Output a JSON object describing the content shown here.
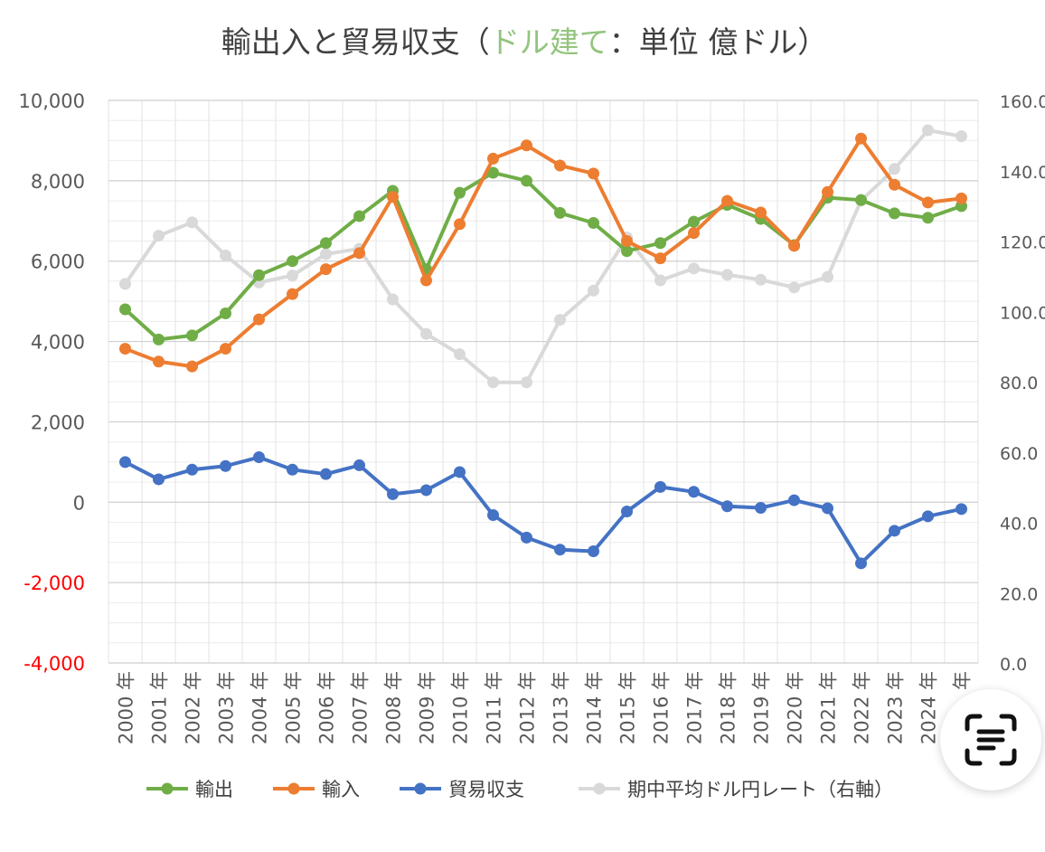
{
  "chart_data": {
    "type": "line",
    "title": {
      "prefix": "輸出入と貿易収支（",
      "highlight": "ドル建て",
      "suffix": "：単位 億ドル）",
      "highlight_color": "#93c47d"
    },
    "categories": [
      "2000 年",
      "2001 年",
      "2002 年",
      "2003 年",
      "2004 年",
      "2005 年",
      "2006 年",
      "2007 年",
      "2008 年",
      "2009 年",
      "2010 年",
      "2011 年",
      "2012 年",
      "2013 年",
      "2014 年",
      "2015 年",
      "2016 年",
      "2017 年",
      "2018 年",
      "2019 年",
      "2020 年",
      "2021 年",
      "2022 年",
      "2023 年",
      "2024 年",
      "年"
    ],
    "y_left": {
      "min": -4000,
      "max": 10000,
      "step": 2000,
      "tick_labels": [
        "-4,000",
        "-2,000",
        "0",
        "2,000",
        "4,000",
        "6,000",
        "8,000",
        "10,000"
      ],
      "negative_color": "#ff0000"
    },
    "y_right": {
      "min": 0,
      "max": 160,
      "step": 20,
      "tick_labels": [
        "0.0",
        "20.0",
        "40.0",
        "60.0",
        "80.0",
        "100.0",
        "120.0",
        "140.0",
        "160.0"
      ]
    },
    "grid": true,
    "legend_position": "bottom",
    "series": [
      {
        "name": "輸出",
        "axis": "left",
        "color": "#70ad47",
        "values": [
          4800,
          4050,
          4150,
          4700,
          5650,
          6000,
          6450,
          7120,
          7750,
          5800,
          7700,
          8200,
          8000,
          7200,
          6950,
          6250,
          6450,
          6980,
          7400,
          7050,
          6400,
          7580,
          7520,
          7190,
          7080,
          7370
        ]
      },
      {
        "name": "輸入",
        "axis": "left",
        "color": "#ed7d31",
        "values": [
          3820,
          3500,
          3380,
          3820,
          4550,
          5180,
          5800,
          6200,
          7600,
          5520,
          6920,
          8550,
          8880,
          8380,
          8180,
          6500,
          6070,
          6700,
          7500,
          7210,
          6380,
          7720,
          9050,
          7900,
          7460,
          7560
        ]
      },
      {
        "name": "貿易収支",
        "axis": "left",
        "color": "#4472c4",
        "values": [
          1000,
          570,
          810,
          900,
          1120,
          810,
          700,
          920,
          200,
          300,
          750,
          -320,
          -880,
          -1180,
          -1220,
          -230,
          380,
          260,
          -100,
          -140,
          50,
          -150,
          -1520,
          -710,
          -350,
          -170
        ]
      },
      {
        "name": "期中平均ドル円レート（右軸）",
        "axis": "right",
        "color": "#d9d9d9",
        "values": [
          107.8,
          121.5,
          125.3,
          115.9,
          108.2,
          110.2,
          116.3,
          117.8,
          103.4,
          93.6,
          87.8,
          79.8,
          79.8,
          97.6,
          105.9,
          121.0,
          108.8,
          112.2,
          110.4,
          109.0,
          106.8,
          109.8,
          131.5,
          140.5,
          151.5,
          149.8
        ]
      }
    ]
  }
}
